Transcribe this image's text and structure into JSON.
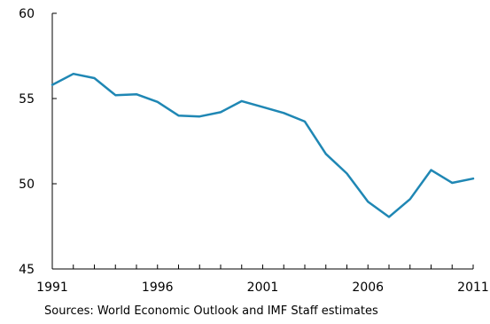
{
  "chart_data": {
    "type": "line",
    "title": "",
    "xlabel": "",
    "ylabel": "",
    "x": [
      1991,
      1992,
      1993,
      1994,
      1995,
      1996,
      1997,
      1998,
      1999,
      2000,
      2001,
      2002,
      2003,
      2004,
      2005,
      2006,
      2007,
      2008,
      2009,
      2010,
      2011
    ],
    "series": [
      {
        "values": [
          55.8,
          56.45,
          56.2,
          55.2,
          55.25,
          54.8,
          54.0,
          53.95,
          54.2,
          54.85,
          54.5,
          54.15,
          53.65,
          51.75,
          50.6,
          48.95,
          48.05,
          49.1,
          50.8,
          50.05,
          50.3
        ],
        "color": "#1f87b4"
      }
    ],
    "xlim": [
      1991,
      2011
    ],
    "ylim": [
      45,
      60
    ],
    "yticks": [
      45,
      50,
      55,
      60
    ],
    "xticks": [
      1991,
      1996,
      2001,
      2006,
      2011
    ],
    "grid": false,
    "legend": "none"
  },
  "source_note": "Sources: World Economic Outlook and IMF Staff estimates"
}
